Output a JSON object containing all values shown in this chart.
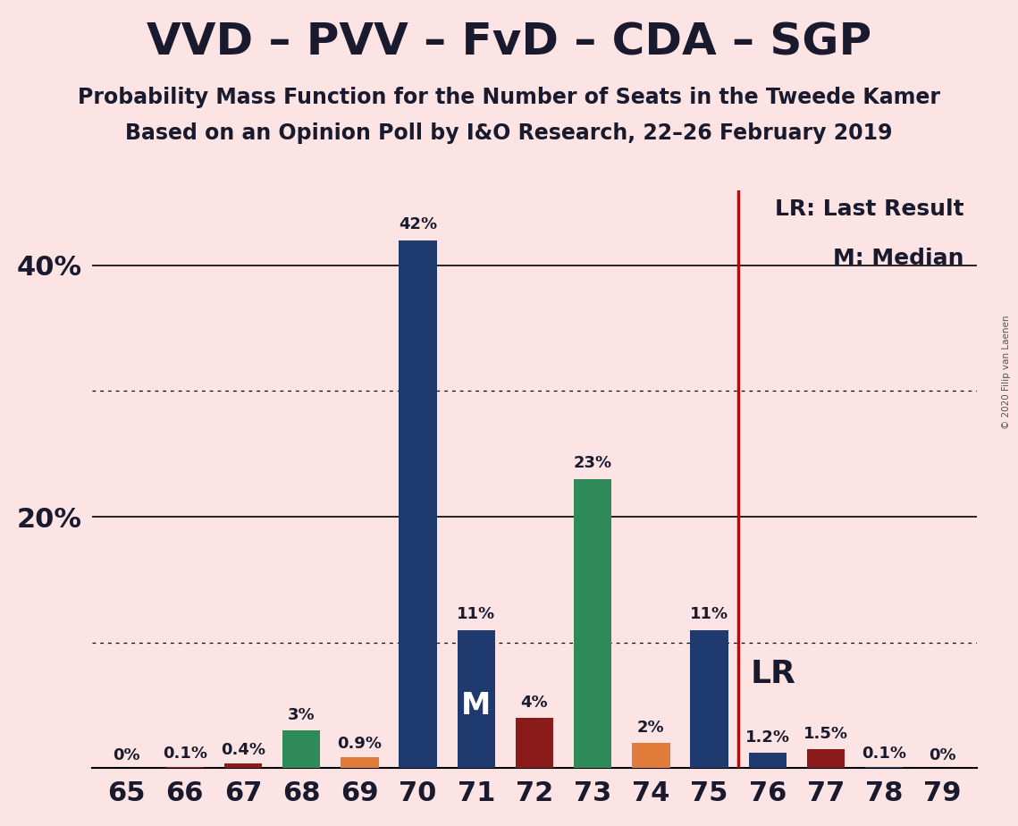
{
  "title": "VVD – PVV – FvD – CDA – SGP",
  "subtitle1": "Probability Mass Function for the Number of Seats in the Tweede Kamer",
  "subtitle2": "Based on an Opinion Poll by I&O Research, 22–26 February 2019",
  "copyright": "© 2020 Filip van Laenen",
  "seats": [
    65,
    66,
    67,
    68,
    69,
    70,
    71,
    72,
    73,
    74,
    75,
    76,
    77,
    78,
    79
  ],
  "values": [
    0.0,
    0.1,
    0.4,
    3.0,
    0.9,
    42.0,
    11.0,
    4.0,
    23.0,
    2.0,
    11.0,
    1.2,
    1.5,
    0.1,
    0.0
  ],
  "colors": [
    "#1f3a6e",
    "#8b1a1a",
    "#8b1a1a",
    "#2e8b57",
    "#e07b39",
    "#1f3a6e",
    "#1f3a6e",
    "#8b1a1a",
    "#2e8b57",
    "#e07b39",
    "#1f3a6e",
    "#1f3a6e",
    "#8b1a1a",
    "#1f3a6e",
    "#1f3a6e"
  ],
  "labels": [
    "0%",
    "0.1%",
    "0.4%",
    "3%",
    "0.9%",
    "42%",
    "11%",
    "4%",
    "23%",
    "2%",
    "11%",
    "1.2%",
    "1.5%",
    "0.1%",
    "0%"
  ],
  "median_seat": 71,
  "lr_seat": 75.5,
  "background_color": "#fce4e4",
  "bar_width": 0.65,
  "ylim": [
    0,
    46
  ],
  "yticks_labeled": [
    20,
    40
  ],
  "ytick_labels": [
    "20%",
    "40%"
  ],
  "dotted_lines": [
    10,
    30
  ],
  "solid_lines": [
    20,
    40
  ],
  "legend_text1": "LR: Last Result",
  "legend_text2": "M: Median",
  "lr_line_color": "#cc0000",
  "text_color": "#1a1a2e"
}
